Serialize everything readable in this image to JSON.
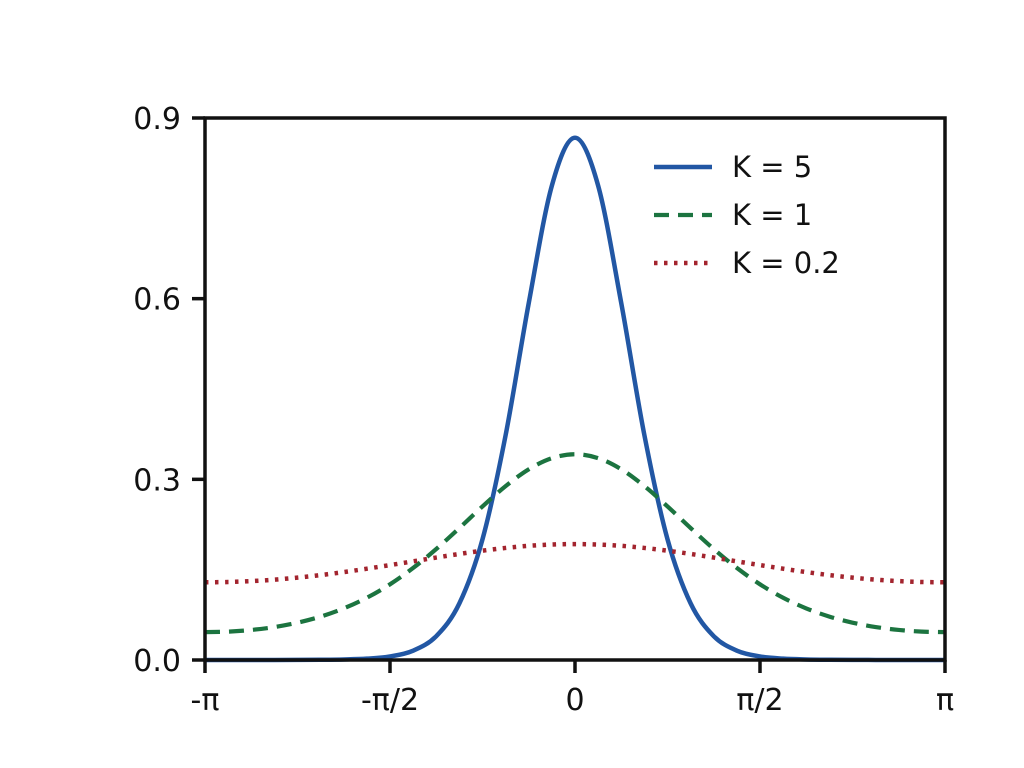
{
  "figure": {
    "background": "#ffffff",
    "axis_color": "#111111",
    "text_color": "#111111"
  },
  "chart_data": {
    "type": "line",
    "title": "",
    "xlabel": "",
    "ylabel": "",
    "grid": false,
    "legend_position": "upper right",
    "xlim_over_pi": [
      -1,
      1
    ],
    "ylim": [
      0,
      0.9
    ],
    "x_ticks": [
      {
        "u": -1,
        "label": "-π"
      },
      {
        "u": -0.5,
        "label": "-π/2"
      },
      {
        "u": 0,
        "label": "0"
      },
      {
        "u": 0.5,
        "label": "π/2"
      },
      {
        "u": 1,
        "label": "π"
      }
    ],
    "y_ticks": [
      {
        "v": 0.0,
        "label": "0.0"
      },
      {
        "v": 0.3,
        "label": "0.3"
      },
      {
        "v": 0.6,
        "label": "0.6"
      },
      {
        "v": 0.9,
        "label": "0.9"
      }
    ],
    "x_over_pi": [
      -1,
      -0.9375,
      -0.875,
      -0.8125,
      -0.75,
      -0.6875,
      -0.625,
      -0.5625,
      -0.5,
      -0.4375,
      -0.375,
      -0.3125,
      -0.25,
      -0.1875,
      -0.125,
      -0.0625,
      0,
      0.0625,
      0.125,
      0.1875,
      0.25,
      0.3125,
      0.375,
      0.4375,
      0.5,
      0.5625,
      0.625,
      0.6875,
      0.75,
      0.8125,
      0.875,
      0.9375,
      1
    ],
    "series": [
      {
        "name": "K = 5",
        "color": "#2257a4",
        "style": "solid",
        "values": [
          0.0,
          0.0,
          0.0001,
          0.0001,
          0.0002,
          0.0004,
          0.0009,
          0.0022,
          0.0058,
          0.0155,
          0.0396,
          0.094,
          0.2005,
          0.3734,
          0.5927,
          0.7877,
          0.8672,
          0.7877,
          0.5927,
          0.3734,
          0.2005,
          0.094,
          0.0396,
          0.0155,
          0.0058,
          0.0022,
          0.0009,
          0.0004,
          0.0002,
          0.0001,
          0.0001,
          0.0,
          0.0
        ]
      },
      {
        "name": "K = 1",
        "color": "#1c7440",
        "style": "dashed",
        "values": [
          0.0463,
          0.0471,
          0.0499,
          0.0547,
          0.062,
          0.0721,
          0.0857,
          0.1034,
          0.1257,
          0.1528,
          0.1843,
          0.2191,
          0.255,
          0.2887,
          0.3167,
          0.3352,
          0.3417,
          0.3352,
          0.3167,
          0.2887,
          0.255,
          0.2191,
          0.1843,
          0.1528,
          0.1257,
          0.1034,
          0.0857,
          0.0721,
          0.062,
          0.0547,
          0.0499,
          0.0471,
          0.0463
        ]
      },
      {
        "name": "K = 0.2",
        "color": "#a3242e",
        "style": "dotted",
        "values": [
          0.129,
          0.1295,
          0.131,
          0.1334,
          0.1368,
          0.141,
          0.146,
          0.1516,
          0.1576,
          0.1638,
          0.1701,
          0.1761,
          0.1815,
          0.1861,
          0.1896,
          0.1917,
          0.1925,
          0.1917,
          0.1896,
          0.1861,
          0.1815,
          0.1761,
          0.1701,
          0.1638,
          0.1576,
          0.1516,
          0.146,
          0.141,
          0.1368,
          0.1334,
          0.131,
          0.1295,
          0.129
        ]
      }
    ]
  }
}
